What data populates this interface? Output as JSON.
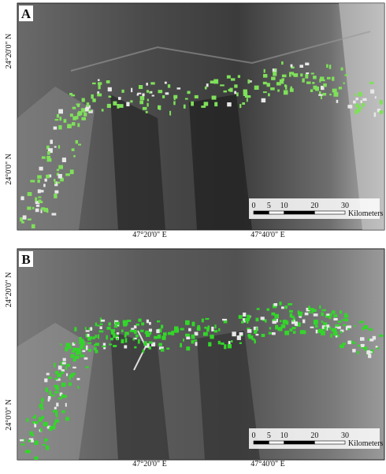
{
  "panels": [
    {
      "label": "A",
      "lat_labels": [
        "24°20'0\" N",
        "24°0'0\" N"
      ],
      "lon_labels": [
        "47°20'0\" E",
        "47°40'0\" E"
      ],
      "scale": {
        "ticks": [
          0,
          5,
          10,
          20,
          30
        ],
        "unit": "Kilometers"
      }
    },
    {
      "label": "B",
      "lat_labels": [
        "24°20'0\" N",
        "24°0'0\" N"
      ],
      "lon_labels": [
        "47°20'0\" E",
        "47°40'0\" E"
      ],
      "scale": {
        "ticks": [
          0,
          5,
          10,
          20,
          30
        ],
        "unit": "Kilometers"
      }
    }
  ]
}
